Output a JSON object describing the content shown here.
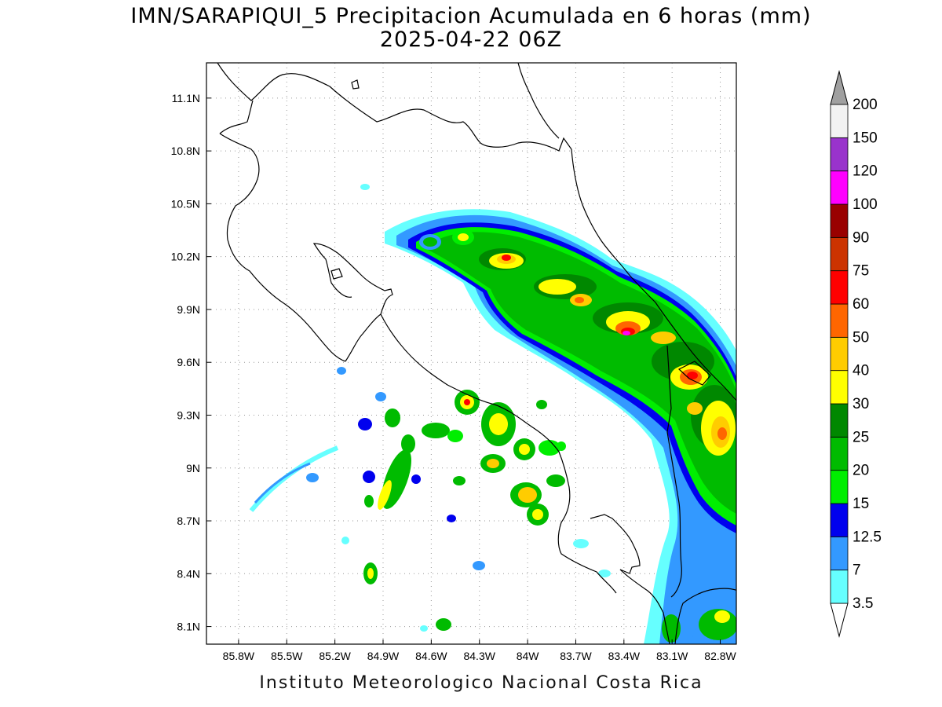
{
  "map": {
    "title_line1": "IMN/SARAPIQUI_5 Precipitacion Acumulada en 6 horas (mm)",
    "title_line2": "2025-04-22 06Z",
    "footer": "Instituto Meteorologico Nacional Costa Rica",
    "lon_range": [
      -86.0,
      -82.7
    ],
    "lat_range": [
      8.0,
      11.3
    ],
    "lon_ticks": [
      {
        "value": -85.8,
        "label": "85.8W"
      },
      {
        "value": -85.5,
        "label": "85.5W"
      },
      {
        "value": -85.2,
        "label": "85.2W"
      },
      {
        "value": -84.9,
        "label": "84.9W"
      },
      {
        "value": -84.6,
        "label": "84.6W"
      },
      {
        "value": -84.3,
        "label": "84.3W"
      },
      {
        "value": -84.0,
        "label": "84W"
      },
      {
        "value": -83.7,
        "label": "83.7W"
      },
      {
        "value": -83.4,
        "label": "83.4W"
      },
      {
        "value": -83.1,
        "label": "83.1W"
      },
      {
        "value": -82.8,
        "label": "82.8W"
      }
    ],
    "lat_ticks": [
      {
        "value": 11.1,
        "label": "11.1N"
      },
      {
        "value": 10.8,
        "label": "10.8N"
      },
      {
        "value": 10.5,
        "label": "10.5N"
      },
      {
        "value": 10.2,
        "label": "10.2N"
      },
      {
        "value": 9.9,
        "label": "9.9N"
      },
      {
        "value": 9.6,
        "label": "9.6N"
      },
      {
        "value": 9.3,
        "label": "9.3N"
      },
      {
        "value": 9.0,
        "label": "9N"
      },
      {
        "value": 8.7,
        "label": "8.7N"
      },
      {
        "value": 8.4,
        "label": "8.4N"
      },
      {
        "value": 8.1,
        "label": "8.1N"
      }
    ],
    "grid": true
  },
  "colorbar": {
    "labels": [
      "3.5",
      "7",
      "12.5",
      "15",
      "20",
      "25",
      "30",
      "40",
      "50",
      "60",
      "75",
      "90",
      "100",
      "120",
      "150",
      "200"
    ],
    "colors": [
      "#66ffff",
      "#3399ff",
      "#0000ee",
      "#00ee00",
      "#00bb00",
      "#008800",
      "#ffff00",
      "#ffcc00",
      "#ff6600",
      "#ff0000",
      "#cc3300",
      "#990000",
      "#ff00ff",
      "#9933cc",
      "#f2f2f2"
    ],
    "lower_arrow_color": "#ffffff",
    "upper_arrow_color": "#a0a0a0"
  }
}
